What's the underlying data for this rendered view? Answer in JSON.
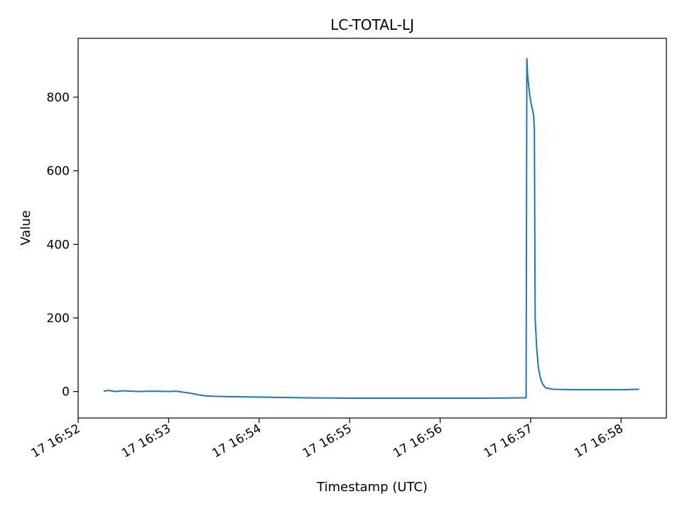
{
  "chart_data": {
    "type": "line",
    "title": "LC-TOTAL-LJ",
    "xlabel": "Timestamp (UTC)",
    "ylabel": "Value",
    "x_range": [
      "16:52:00",
      "16:58:30"
    ],
    "ylim": [
      -72,
      960
    ],
    "y_ticks": [
      0,
      200,
      400,
      600,
      800
    ],
    "x_ticks": [
      {
        "t": "16:52:00",
        "label": "17 16:52"
      },
      {
        "t": "16:53:00",
        "label": "17 16:53"
      },
      {
        "t": "16:54:00",
        "label": "17 16:54"
      },
      {
        "t": "16:55:00",
        "label": "17 16:55"
      },
      {
        "t": "16:56:00",
        "label": "17 16:56"
      },
      {
        "t": "16:57:00",
        "label": "17 16:57"
      },
      {
        "t": "16:58:00",
        "label": "17 16:58"
      }
    ],
    "grid": false,
    "legend": "none",
    "series": [
      {
        "color": "#1f77b4",
        "points": [
          [
            "16:52:17",
            1
          ],
          [
            "16:52:20",
            3
          ],
          [
            "16:52:25",
            0
          ],
          [
            "16:52:30",
            2
          ],
          [
            "16:52:40",
            0
          ],
          [
            "16:52:50",
            1
          ],
          [
            "16:53:00",
            0
          ],
          [
            "16:53:05",
            1
          ],
          [
            "16:53:10",
            -2
          ],
          [
            "16:53:15",
            -5
          ],
          [
            "16:53:20",
            -9
          ],
          [
            "16:53:25",
            -12
          ],
          [
            "16:53:30",
            -13
          ],
          [
            "16:53:40",
            -14
          ],
          [
            "16:54:00",
            -15
          ],
          [
            "16:54:30",
            -17
          ],
          [
            "16:55:00",
            -18
          ],
          [
            "16:55:30",
            -18
          ],
          [
            "16:56:00",
            -18
          ],
          [
            "16:56:30",
            -18
          ],
          [
            "16:56:56",
            -17
          ],
          [
            "16:56:57",
            -17
          ],
          [
            "16:56:57.5",
            905
          ],
          [
            "16:56:58",
            860
          ],
          [
            "16:56:59",
            820
          ],
          [
            "16:57:00",
            790
          ],
          [
            "16:57:01",
            770
          ],
          [
            "16:57:02",
            750
          ],
          [
            "16:57:02.5",
            710
          ],
          [
            "16:57:03",
            200
          ],
          [
            "16:57:04",
            120
          ],
          [
            "16:57:05",
            70
          ],
          [
            "16:57:06",
            45
          ],
          [
            "16:57:07",
            30
          ],
          [
            "16:57:08",
            20
          ],
          [
            "16:57:10",
            10
          ],
          [
            "16:57:15",
            6
          ],
          [
            "16:57:30",
            5
          ],
          [
            "16:58:00",
            5
          ],
          [
            "16:58:12",
            6
          ]
        ]
      }
    ]
  }
}
